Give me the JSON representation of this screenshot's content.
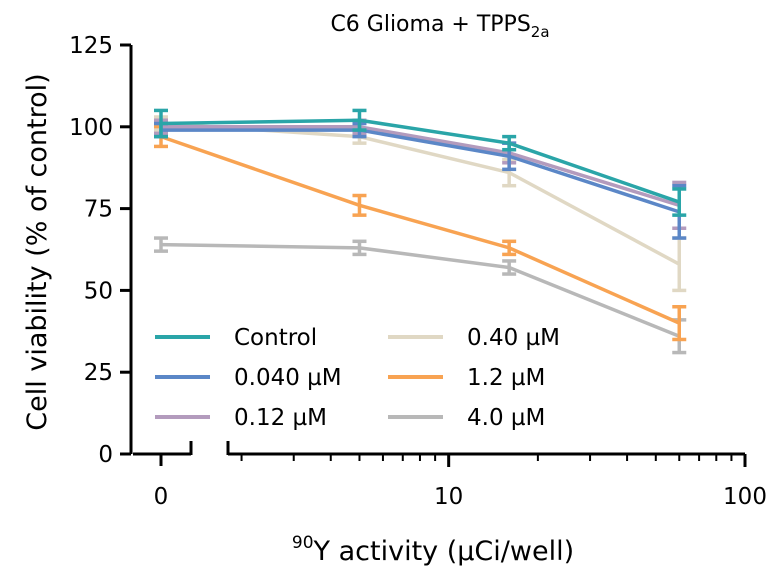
{
  "chart_data": {
    "type": "line",
    "title": "C6 Glioma + TPPS",
    "title_subscript": "2a",
    "xlabel": "Y activity (µCi/well)",
    "xlabel_superscript": "90",
    "ylabel": "Cell viability (% of control)",
    "x_scale": "log, with a separate segment for zero",
    "x_zero_label": "0",
    "x_ticklabels": [
      "10",
      "100"
    ],
    "xlim": [
      1.8,
      100
    ],
    "ylim": [
      0,
      125
    ],
    "y_ticks": [
      0,
      25,
      50,
      75,
      100,
      125
    ],
    "grid": false,
    "legend_position": "lower-left",
    "x": [
      0,
      5,
      16,
      60
    ],
    "series": [
      {
        "name": "Control",
        "color": "#2aa5a8",
        "values": [
          101,
          102,
          95,
          77
        ],
        "errors": [
          4,
          3,
          2,
          4
        ]
      },
      {
        "name": "0.040 µM",
        "color": "#5b87c7",
        "values": [
          99,
          99,
          91,
          74
        ],
        "errors": [
          2,
          2,
          4,
          8
        ]
      },
      {
        "name": "0.12 µM",
        "color": "#b39bbd",
        "values": [
          100,
          100,
          92,
          76
        ],
        "errors": [
          2,
          2,
          3,
          7
        ]
      },
      {
        "name": "0.40 µM",
        "color": "#e0d8c4",
        "values": [
          101,
          97,
          86,
          58
        ],
        "errors": [
          2,
          2,
          4,
          8
        ]
      },
      {
        "name": "1.2 µM",
        "color": "#f8a352",
        "values": [
          97,
          76,
          63,
          40
        ],
        "errors": [
          3,
          3,
          2,
          5
        ]
      },
      {
        "name": "4.0 µM",
        "color": "#b8b8b8",
        "values": [
          64,
          63,
          57,
          36
        ],
        "errors": [
          2,
          2,
          2,
          5
        ]
      }
    ]
  }
}
